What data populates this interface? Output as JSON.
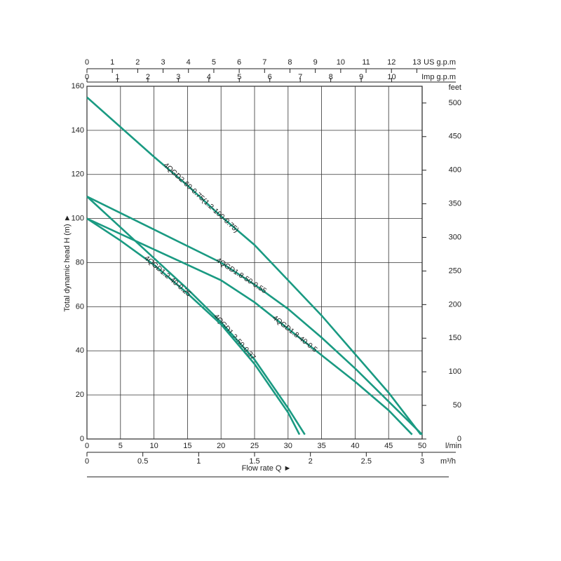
{
  "chart_data": {
    "type": "line",
    "y_label": "Total dynamic head H (m) ►",
    "x_label": "Flow rate Q ►",
    "x_unit": "l/min",
    "xlim": [
      0,
      50
    ],
    "xticks": [
      0,
      5,
      10,
      15,
      20,
      25,
      30,
      35,
      40,
      45,
      50
    ],
    "ylim": [
      0,
      160
    ],
    "yticks": [
      0,
      20,
      40,
      60,
      80,
      100,
      120,
      140,
      160
    ],
    "y2_unit": "feet",
    "y2lim": [
      0,
      524.9
    ],
    "y2ticks": [
      0,
      50,
      100,
      150,
      200,
      250,
      300,
      350,
      400,
      450,
      500
    ],
    "x_m3h": {
      "unit": "m³/h",
      "lim": [
        0,
        3
      ],
      "ticks": [
        0,
        0.5,
        1,
        1.5,
        2,
        2.5,
        3
      ]
    },
    "x_us_gpm": {
      "unit": "US g.p.m",
      "lim": [
        0,
        13.21
      ],
      "ticks": [
        0,
        1,
        2,
        3,
        4,
        5,
        6,
        7,
        8,
        9,
        10,
        11,
        12,
        13
      ]
    },
    "x_imp_gpm": {
      "unit": "Imp g.p.m",
      "lim": [
        0,
        11.0
      ],
      "ticks": [
        0,
        1,
        2,
        3,
        4,
        5,
        6,
        7,
        8,
        9,
        10
      ]
    },
    "grid": true,
    "series": [
      {
        "name": "4QGD2-60-0.75(1.2-100-0.75)",
        "color": "#1a9a82",
        "x": [
          0,
          10,
          15,
          20,
          25,
          30,
          35,
          40,
          45,
          49.8
        ],
        "values": [
          155,
          128,
          115,
          101,
          88,
          72,
          56,
          38.5,
          21,
          2
        ]
      },
      {
        "name": "4QGD1.8-50-0.55",
        "color": "#1a9a82",
        "x": [
          0,
          10,
          20,
          25,
          30,
          35,
          40,
          45,
          50
        ],
        "values": [
          110,
          95,
          80,
          70,
          59,
          46,
          32,
          17,
          2
        ]
      },
      {
        "name": "4QGD1.8-40-0.5",
        "color": "#1a9a82",
        "x": [
          0,
          10,
          20,
          25,
          30,
          35,
          40,
          45,
          48.5
        ],
        "values": [
          100,
          86,
          72,
          62,
          50,
          38,
          26,
          13,
          2
        ]
      },
      {
        "name": "4QGD1.2-50-0.37",
        "color": "#1a9a82",
        "x": [
          0,
          5,
          10,
          15,
          20,
          25,
          30,
          32.5
        ],
        "values": [
          110,
          96,
          82,
          68,
          53,
          36,
          14,
          2
        ]
      },
      {
        "name": "4QGD1.2-40-0.25",
        "color": "#1a9a82",
        "x": [
          0,
          5,
          10,
          15,
          20,
          25,
          30,
          31.7
        ],
        "values": [
          100,
          90,
          79,
          66,
          52,
          34,
          12,
          2
        ]
      }
    ]
  }
}
